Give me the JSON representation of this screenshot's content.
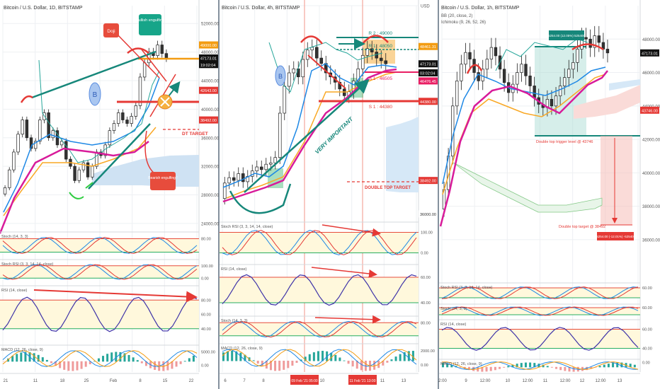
{
  "panels": [
    {
      "title": "Bitcoin / U.S. Dollar, 1D, BITSTAMP",
      "price_axis": [
        {
          "label": "52000.00",
          "value": 52000
        },
        {
          "label": "48000.00",
          "value": 48000
        },
        {
          "label": "44000.00",
          "value": 44000
        },
        {
          "label": "40000.00",
          "value": 40000
        },
        {
          "label": "36000.00",
          "value": 36000
        },
        {
          "label": "32000.00",
          "value": 32000
        },
        {
          "label": "28000.00",
          "value": 28000
        },
        {
          "label": "24000.00",
          "value": 24000
        }
      ],
      "price_tags": [
        {
          "label": "49000.00",
          "value": 49000,
          "color": "#f39c12"
        },
        {
          "label": "47173.01",
          "value": 47173,
          "color": "#111111"
        },
        {
          "label": "19:02:04",
          "value": 46250,
          "color": "#111111"
        },
        {
          "label": "42643.00",
          "value": 42643,
          "color": "#e53935"
        },
        {
          "label": "38492.00",
          "value": 38492,
          "color": "#e53935"
        }
      ],
      "annotations": {
        "doji": "Doji",
        "bullish_engulfing": "Bullish engulfing",
        "bearish_engulfing": "Bearish engulfing !",
        "dt_target": "DT TARGET",
        "b_badge": "B"
      },
      "time_axis": [
        "21",
        "11",
        "18",
        "25",
        "Feb",
        "8",
        "15",
        "22"
      ],
      "indicators": [
        {
          "name": "Stoch (14, 3, 3)",
          "levels": [
            "80.00"
          ]
        },
        {
          "name": "Stoch RSI (3, 3, 14, 14, close)",
          "levels": [
            "100.00",
            "0.00"
          ]
        },
        {
          "name": "RSI (14, close)",
          "levels": [
            "80.00",
            "60.00",
            "40.00"
          ]
        },
        {
          "name": "MACD (12, 26, close, 9)",
          "levels": [
            "5000.00",
            "0.00"
          ]
        }
      ]
    },
    {
      "title": "Bitcoin / U.S. Dollar, 4h, BITSTAMP",
      "price_axis": [
        {
          "label": "USD",
          "value": 51500
        }
      ],
      "price_tags": [
        {
          "label": "48461.31",
          "value": 48461,
          "color": "#f39c12"
        },
        {
          "label": "47173.01",
          "value": 47173,
          "color": "#111111"
        },
        {
          "label": "03:02:04",
          "value": 46500,
          "color": "#111111"
        },
        {
          "label": "46476.45",
          "value": 45900,
          "color": "#e91e63"
        },
        {
          "label": "44380.00",
          "value": 44380,
          "color": "#e53935"
        },
        {
          "label": "38492.00",
          "value": 38492,
          "color": "#e53935"
        },
        {
          "label": "36000.00",
          "value": 36000,
          "color": "#ffffff"
        }
      ],
      "annotations": {
        "r2": "R 2 : 49000",
        "r1": "R 1 : 48050",
        "s1_upper": "S 1 : 46505",
        "s1_lower": "S 1 : 44380",
        "very_important": "VERY IMPORTANT",
        "double_top_target": "DOUBLE TOP TARGET",
        "b_badge": "B"
      },
      "time_axis": [
        "6",
        "7",
        "8",
        "10",
        "11",
        "13"
      ],
      "time_highlights": [
        "09 Feb '21  05:00",
        "11 Feb '21  13:00"
      ],
      "indicators": [
        {
          "name": "Stoch RSI (3, 3, 14, 14, close)",
          "levels": [
            "100.00",
            "0.00"
          ]
        },
        {
          "name": "RSI (14, close)",
          "levels": [
            "60.00",
            "40.00"
          ]
        },
        {
          "name": "Stoch (14, 3, 3)",
          "levels": [
            "80.00"
          ]
        },
        {
          "name": "MACD (12, 26, close, 9)",
          "levels": [
            "2000.00",
            "0.00"
          ]
        }
      ]
    },
    {
      "title": "Bitcoin / U.S. Dollar, 1h, BITSTAMP",
      "subtitles": [
        "BB (20, close, 2)",
        "Ichimoku (9, 26, 52, 26)"
      ],
      "price_axis": [
        {
          "label": "48000.00",
          "value": 48000
        },
        {
          "label": "46000.00",
          "value": 46000
        },
        {
          "label": "44000.00",
          "value": 44000
        },
        {
          "label": "42000.00",
          "value": 42000
        },
        {
          "label": "40000.00",
          "value": 40000
        },
        {
          "label": "38000.00",
          "value": 38000
        },
        {
          "label": "36000.00",
          "value": 36000
        }
      ],
      "price_tags": [
        {
          "label": "47173.01",
          "value": 47173,
          "color": "#111111"
        },
        {
          "label": "43746.00",
          "value": 43746,
          "color": "#e53935"
        }
      ],
      "annotations": {
        "measure_top": "5254.00 (12.05%) 525400",
        "trigger": "Double top trigger level @ 43746",
        "target": "Double top target @ 38492",
        "measure_bottom": "-5254.00 (-12.01%) -525400"
      },
      "time_axis": [
        "2:00",
        "9",
        "12:00",
        "10",
        "12:00",
        "11",
        "12:00",
        "12",
        "12:00",
        "13"
      ],
      "indicators": [
        {
          "name": "Stoch RSI (3, 3, 14, 14, close)",
          "levels": [
            "60.00"
          ]
        },
        {
          "name": "Stoch (14, 3, 3)",
          "levels": [
            "60.00"
          ]
        },
        {
          "name": "RSI (14, close)",
          "levels": [
            "60.00",
            "40.00"
          ]
        },
        {
          "name": "MACD (12, 26, close, 9)",
          "levels": [
            "0.00"
          ]
        }
      ]
    }
  ],
  "colors": {
    "grid": "#eef0f3",
    "up": "#ffffff",
    "down": "#333333",
    "resistance": "#e53935",
    "trend": "#16877a",
    "cloud": "#cfe2f3",
    "tenkan": "#1e88e5",
    "kijun": "#f9a825",
    "ema": "#d81b9a",
    "rsi": "#3f33a8",
    "yellow_band": "#fff8dc"
  },
  "chart_data": [
    {
      "type": "candlestick",
      "title": "Bitcoin / U.S. Dollar, 1D, BITSTAMP",
      "ylim": [
        23000,
        54500
      ],
      "closes": [
        29000,
        31500,
        34000,
        36500,
        38500,
        36000,
        34500,
        35500,
        38500,
        39500,
        36000,
        37000,
        35000,
        35500,
        33000,
        32000,
        30000,
        31500,
        32500,
        30500,
        32000,
        34000,
        33500,
        35000,
        37000,
        38000,
        39500,
        38500,
        38000,
        39000,
        40500,
        44500,
        46500,
        48000,
        47500,
        49000,
        47800,
        47173
      ],
      "annotated_levels": {
        "resistance": 49000,
        "support": 42643,
        "dt_target": 38492
      }
    },
    {
      "type": "candlestick",
      "title": "Bitcoin / U.S. Dollar, 4h, BITSTAMP",
      "ylim": [
        35500,
        51500
      ],
      "closes": [
        38300,
        38700,
        38500,
        39000,
        38400,
        38800,
        39200,
        39500,
        39300,
        39700,
        39800,
        40200,
        43500,
        45500,
        46500,
        46800,
        46200,
        47500,
        48200,
        48400,
        47600,
        47200,
        46500,
        46200,
        45800,
        45300,
        44800,
        45100,
        45900,
        46800,
        47800,
        48300,
        48050,
        47600,
        47400,
        47173
      ],
      "annotated_levels": {
        "r2": 49000,
        "r1": 48050,
        "s1_upper": 46505,
        "s1_lower": 44380,
        "double_top_target": 38492
      }
    },
    {
      "type": "candlestick",
      "title": "Bitcoin / U.S. Dollar, 1h, BITSTAMP",
      "ylim": [
        33500,
        50000
      ],
      "closes": [
        39000,
        41000,
        44000,
        45500,
        46500,
        47200,
        46800,
        46000,
        45500,
        46200,
        46800,
        47500,
        47000,
        46200,
        45400,
        44800,
        45300,
        46000,
        46500,
        45800,
        45200,
        44500,
        44100,
        43900,
        44400,
        44000,
        44600,
        45200,
        45700,
        46200,
        46600,
        47400,
        48100,
        48000,
        47500,
        48200,
        47800,
        47400,
        47173
      ],
      "annotated_levels": {
        "double_top_trigger": 43746,
        "double_top_target": 38492
      }
    }
  ]
}
